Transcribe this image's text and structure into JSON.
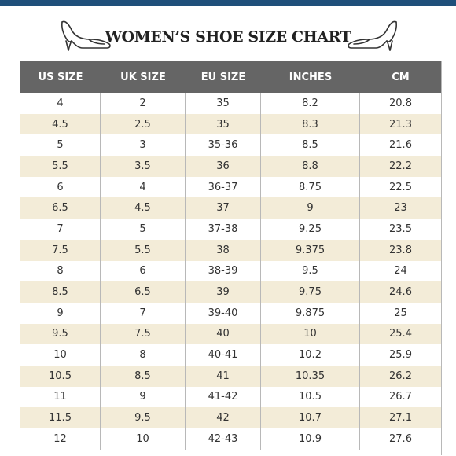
{
  "title": "WOMEN’S SHOE SIZE CHART",
  "icons": {
    "left": "high-heel-shoe-icon",
    "right": "high-heel-shoe-icon"
  },
  "colors": {
    "header_bg": "#656565",
    "stripe": "#f3ecd8",
    "top_bar": "#1f4f7a"
  },
  "columns": [
    "US SIZE",
    "UK SIZE",
    "EU SIZE",
    "INCHES",
    "CM"
  ],
  "rows": [
    [
      "4",
      "2",
      "35",
      "8.2",
      "20.8"
    ],
    [
      "4.5",
      "2.5",
      "35",
      "8.3",
      "21.3"
    ],
    [
      "5",
      "3",
      "35-36",
      "8.5",
      "21.6"
    ],
    [
      "5.5",
      "3.5",
      "36",
      "8.8",
      "22.2"
    ],
    [
      "6",
      "4",
      "36-37",
      "8.75",
      "22.5"
    ],
    [
      "6.5",
      "4.5",
      "37",
      "9",
      "23"
    ],
    [
      "7",
      "5",
      "37-38",
      "9.25",
      "23.5"
    ],
    [
      "7.5",
      "5.5",
      "38",
      "9.375",
      "23.8"
    ],
    [
      "8",
      "6",
      "38-39",
      "9.5",
      "24"
    ],
    [
      "8.5",
      "6.5",
      "39",
      "9.75",
      "24.6"
    ],
    [
      "9",
      "7",
      "39-40",
      "9.875",
      "25"
    ],
    [
      "9.5",
      "7.5",
      "40",
      "10",
      "25.4"
    ],
    [
      "10",
      "8",
      "40-41",
      "10.2",
      "25.9"
    ],
    [
      "10.5",
      "8.5",
      "41",
      "10.35",
      "26.2"
    ],
    [
      "11",
      "9",
      "41-42",
      "10.5",
      "26.7"
    ],
    [
      "11.5",
      "9.5",
      "42",
      "10.7",
      "27.1"
    ],
    [
      "12",
      "10",
      "42-43",
      "10.9",
      "27.6"
    ]
  ]
}
